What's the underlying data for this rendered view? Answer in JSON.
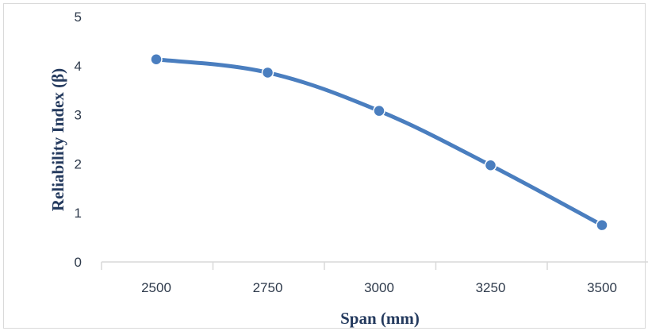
{
  "chart_data": {
    "type": "line",
    "title": "",
    "xlabel": "Span (mm)",
    "ylabel": "Reliability Index (β)",
    "categories": [
      "2500",
      "2750",
      "3000",
      "3250",
      "3500"
    ],
    "series": [
      {
        "values": [
          4.13,
          3.86,
          3.08,
          1.97,
          0.75
        ]
      }
    ],
    "ylim": [
      0,
      5
    ],
    "yticks": [
      "0",
      "1",
      "2",
      "3",
      "4",
      "5"
    ],
    "grid": false,
    "legend": "none",
    "colors": {
      "line": "#4a7ebf",
      "marker": "#4a7ebf",
      "marker_stroke": "#ffffff",
      "axis": "#d9d9d9"
    }
  }
}
